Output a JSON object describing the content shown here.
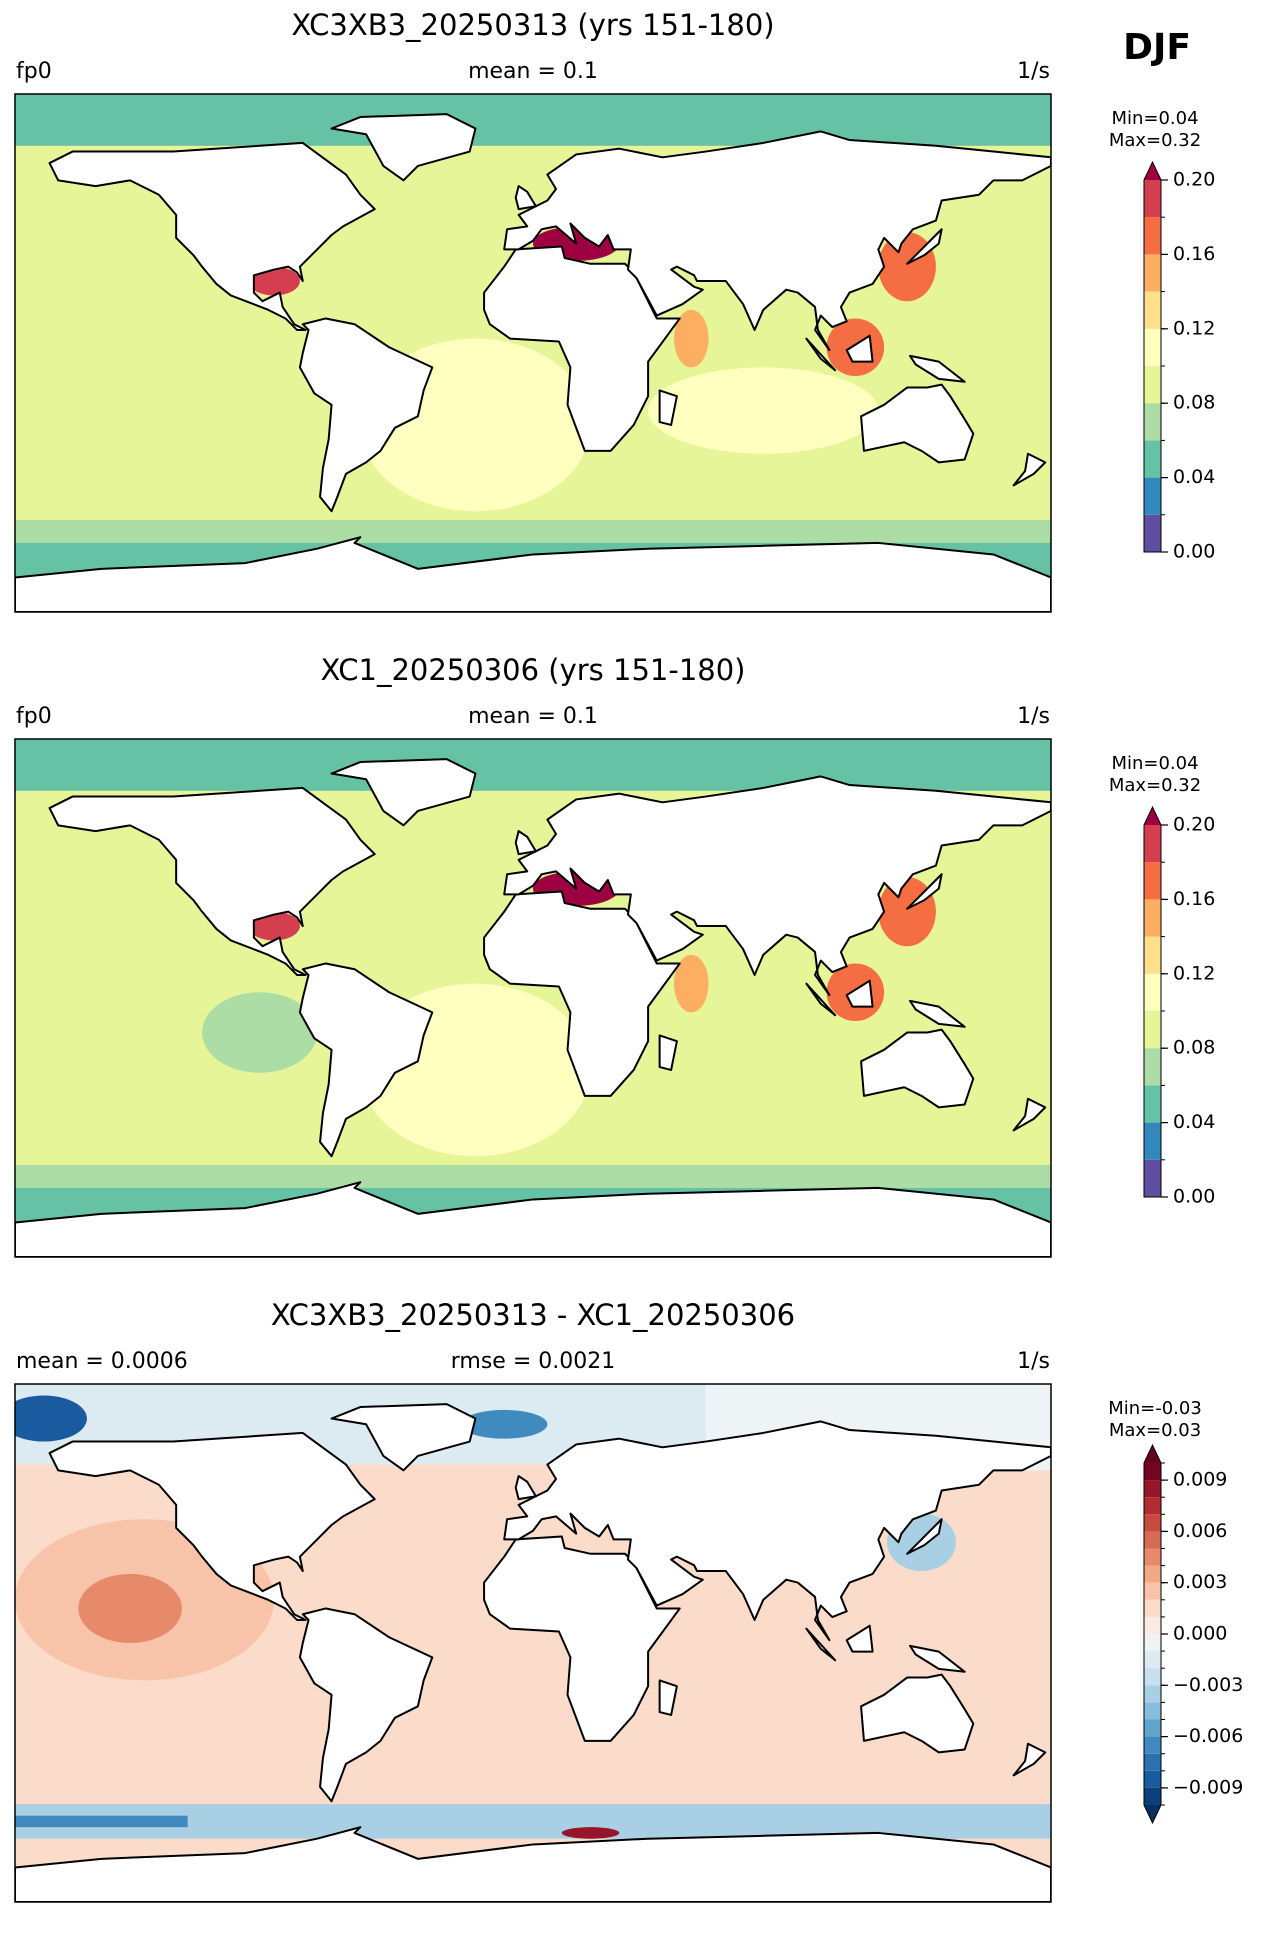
{
  "season": "DJF",
  "chart_data": [
    {
      "type": "map",
      "title": "XC3XB3_20250313 (yrs 151-180)",
      "left_label": "fp0",
      "center_label": "mean = 0.1",
      "right_label": "1/s",
      "colorbar": {
        "min_label": "Min=0.04",
        "max_label": "Max=0.32",
        "ylim": [
          0,
          0.2
        ],
        "yticks": [
          {
            "value": 0,
            "label": "0.00"
          },
          0.04,
          0.08,
          0.12,
          0.16,
          {
            "value": 0.2,
            "label": "0.20"
          }
        ],
        "levels": [
          0,
          0.02,
          0.04,
          0.06,
          0.08,
          0.1,
          0.12,
          0.14,
          0.16,
          0.18,
          0.2
        ],
        "colors": [
          "#5e4fa2",
          "#3288bd",
          "#66c2a5",
          "#abdda4",
          "#e6f598",
          "#ffffbf",
          "#fee08b",
          "#fdae61",
          "#f46d43",
          "#d53e4f"
        ],
        "extend_colors": [
          "#9e0142"
        ]
      }
    },
    {
      "type": "map",
      "title": "XC1_20250306 (yrs 151-180)",
      "left_label": "fp0",
      "center_label": "mean = 0.1",
      "right_label": "1/s",
      "colorbar": {
        "min_label": "Min=0.04",
        "max_label": "Max=0.32",
        "ylim": [
          0,
          0.2
        ],
        "yticks": [
          {
            "value": 0,
            "label": "0.00"
          },
          0.04,
          0.08,
          0.12,
          0.16,
          {
            "value": 0.2,
            "label": "0.20"
          }
        ],
        "levels": [
          0,
          0.02,
          0.04,
          0.06,
          0.08,
          0.1,
          0.12,
          0.14,
          0.16,
          0.18,
          0.2
        ],
        "colors": [
          "#5e4fa2",
          "#3288bd",
          "#66c2a5",
          "#abdda4",
          "#e6f598",
          "#ffffbf",
          "#fee08b",
          "#fdae61",
          "#f46d43",
          "#d53e4f"
        ],
        "extend_colors": [
          "#9e0142"
        ]
      }
    },
    {
      "type": "map",
      "title": "XC3XB3_20250313 - XC1_20250306",
      "left_label": "mean = 0.0006",
      "center_label": "rmse = 0.0021",
      "right_label": "1/s",
      "colorbar": {
        "min_label": "Min=-0.03",
        "max_label": "Max=0.03",
        "ylim": [
          -0.01,
          0.01
        ],
        "yticks": [
          {
            "value": -0.009,
            "label": "−0.009"
          },
          {
            "value": -0.006,
            "label": "−0.006"
          },
          {
            "value": -0.003,
            "label": "−0.003"
          },
          {
            "value": 0,
            "label": "0.000"
          },
          0.003,
          0.006,
          0.009
        ],
        "levels": [
          -0.01,
          -0.009,
          -0.008,
          -0.007,
          -0.006,
          -0.005,
          -0.004,
          -0.003,
          -0.002,
          -0.001,
          0,
          0.001,
          0.002,
          0.003,
          0.004,
          0.005,
          0.006,
          0.007,
          0.008,
          0.009,
          0.01
        ],
        "colors": [
          "#0b3f7a",
          "#1a5a9e",
          "#2a71b2",
          "#3f8bc0",
          "#62a3cd",
          "#87bcdb",
          "#a9cfe5",
          "#c7e0ed",
          "#dceaf2",
          "#eef3f6",
          "#faece4",
          "#fbdbc9",
          "#f8c4a9",
          "#f4a886",
          "#e78a6a",
          "#d86a53",
          "#c84b40",
          "#b42b32",
          "#961529",
          "#74051f"
        ],
        "extend_colors": [
          "#053061",
          "#67001f"
        ]
      }
    }
  ]
}
